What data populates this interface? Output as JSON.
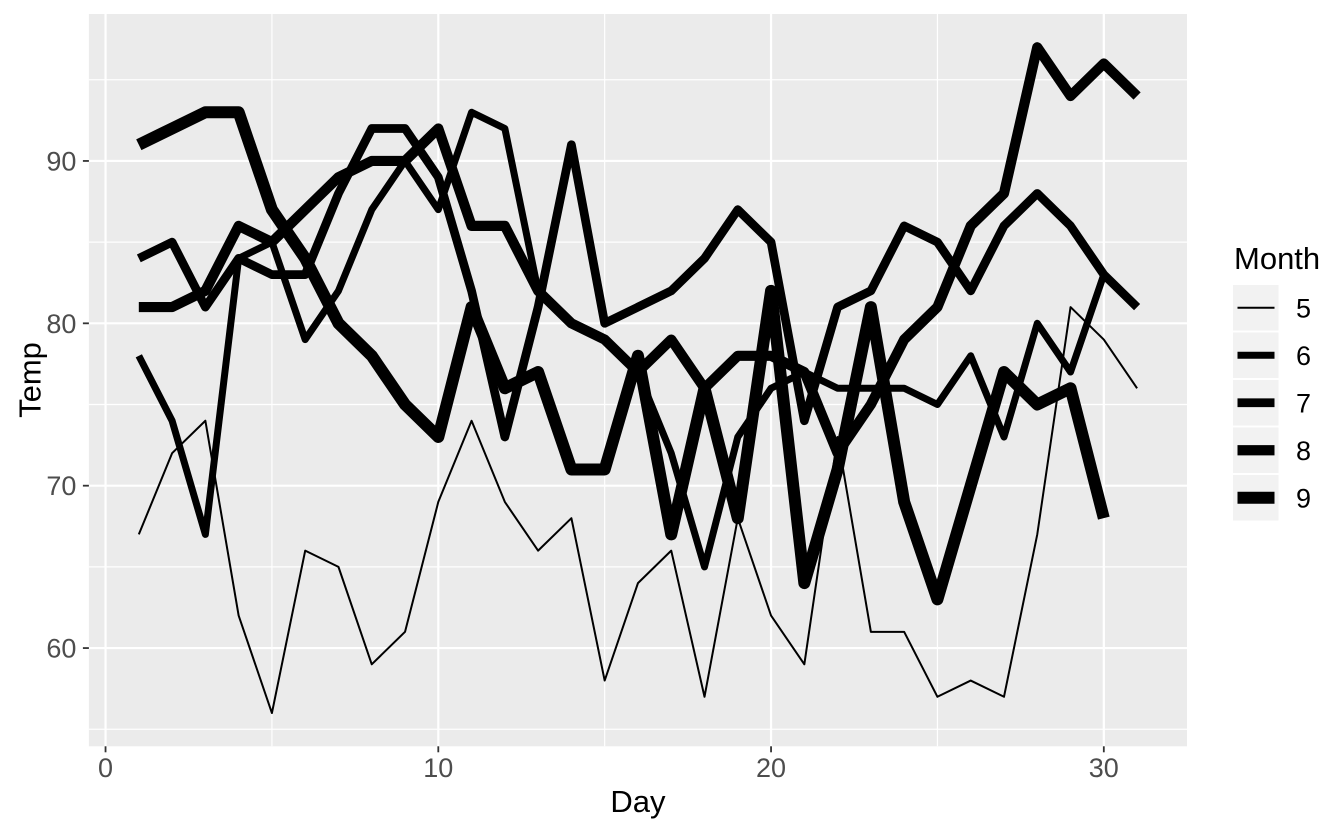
{
  "figure": {
    "background": "#FFFFFF",
    "panel_background": "#EBEBEB",
    "grid_color": "#FFFFFF",
    "axis_text_color": "#4D4D4D",
    "tick_mark_color": "#333333",
    "title_color": "#000000",
    "line_color": "#000000",
    "legend_key_fill": "#F2F2F2"
  },
  "chart_data": {
    "type": "line",
    "title": "",
    "xlabel": "Day",
    "ylabel": "Temp",
    "legend_title": "Month",
    "legend_position": "right",
    "grid": true,
    "x_domain": [
      -0.5,
      32.5
    ],
    "y_domain": [
      53.95,
      99.05
    ],
    "x_major_ticks": [
      0,
      10,
      20,
      30
    ],
    "y_major_ticks": [
      60,
      70,
      80,
      90
    ],
    "x_minor_ticks": [
      5,
      15,
      25
    ],
    "y_minor_ticks": [
      55,
      65,
      75,
      85,
      95
    ],
    "x_start_day": 1,
    "series": [
      {
        "name": "5",
        "month": 5,
        "stroke_width": 2,
        "values": [
          67,
          72,
          74,
          62,
          56,
          66,
          65,
          59,
          61,
          69,
          74,
          69,
          66,
          68,
          58,
          64,
          66,
          57,
          68,
          62,
          59,
          73,
          61,
          61,
          57,
          58,
          57,
          67,
          81,
          79,
          76
        ]
      },
      {
        "name": "6",
        "month": 6,
        "stroke_width": 7,
        "values": [
          78,
          74,
          67,
          84,
          85,
          79,
          82,
          87,
          90,
          87,
          93,
          92,
          82,
          80,
          79,
          77,
          72,
          65,
          73,
          76,
          77,
          76,
          76,
          76,
          75,
          78,
          73,
          80,
          77,
          83
        ]
      },
      {
        "name": "7",
        "month": 7,
        "stroke_width": 8.7,
        "values": [
          84,
          85,
          81,
          84,
          83,
          83,
          88,
          92,
          92,
          89,
          82,
          73,
          81,
          91,
          80,
          81,
          82,
          84,
          87,
          85,
          74,
          81,
          82,
          86,
          85,
          82,
          86,
          88,
          86,
          83,
          81
        ]
      },
      {
        "name": "8",
        "month": 8,
        "stroke_width": 10.2,
        "values": [
          81,
          81,
          82,
          86,
          85,
          87,
          89,
          90,
          90,
          92,
          86,
          86,
          82,
          80,
          79,
          77,
          79,
          76,
          78,
          78,
          77,
          72,
          75,
          79,
          81,
          86,
          88,
          97,
          94,
          96,
          94
        ]
      },
      {
        "name": "9",
        "month": 9,
        "stroke_width": 12,
        "values": [
          91,
          92,
          93,
          93,
          87,
          84,
          80,
          78,
          75,
          73,
          81,
          76,
          77,
          71,
          71,
          78,
          67,
          76,
          68,
          82,
          64,
          71,
          81,
          69,
          63,
          70,
          77,
          75,
          76,
          68
        ]
      }
    ]
  }
}
